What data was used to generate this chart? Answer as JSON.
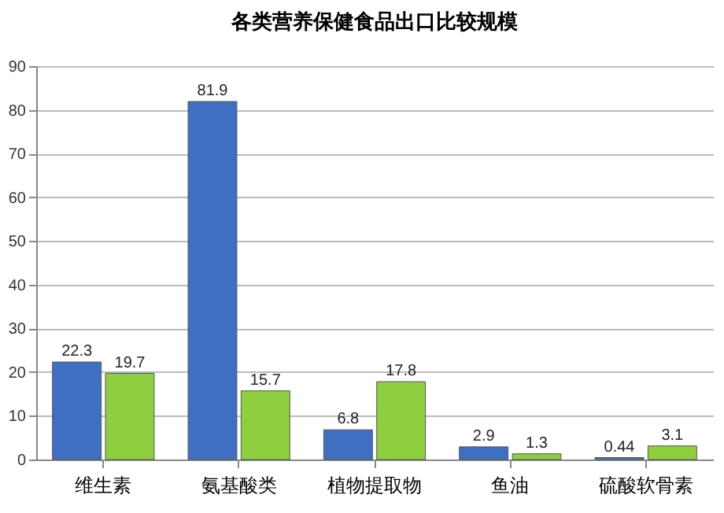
{
  "chart_data": {
    "type": "bar",
    "title": "各类营养保健食品出口比较规模",
    "categories": [
      "维生素",
      "氨基酸类",
      "植物提取物",
      "鱼油",
      "硫酸软骨素"
    ],
    "series": [
      {
        "color": "#3f6fc0",
        "values": [
          22.3,
          81.9,
          6.8,
          2.9,
          0.44
        ]
      },
      {
        "color": "#8fce3f",
        "values": [
          19.7,
          15.7,
          17.8,
          1.3,
          3.1
        ]
      }
    ],
    "ylim": [
      0,
      90
    ],
    "yticks": [
      0,
      10,
      20,
      30,
      40,
      50,
      60,
      70,
      80,
      90
    ],
    "grid": "y",
    "legend": false,
    "data_labels": true
  }
}
